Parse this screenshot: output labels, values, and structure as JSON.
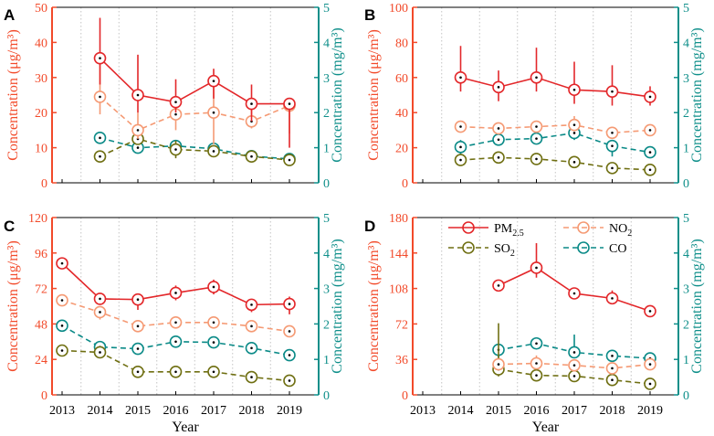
{
  "colors": {
    "pm25": "#e3272a",
    "no2": "#f59a74",
    "so2": "#6f6f12",
    "co": "#0a8a87",
    "left_axis": "#f24a2a",
    "right_axis": "#0f8f8a",
    "grid": "#c4c4c4"
  },
  "x_axis": {
    "xlabel": "Year"
  },
  "legend": {
    "pm25": "PM",
    "pm25_sub": "2.5",
    "no2": "NO",
    "no2_sub": "2",
    "so2": "SO",
    "so2_sub": "2",
    "co": "CO"
  },
  "chart_data": [
    {
      "type": "line",
      "panel_label": "A",
      "categories": [
        "2013",
        "2014",
        "2015",
        "2016",
        "2017",
        "2018",
        "2019"
      ],
      "ylabel_left": "Concentration (μg/m³)",
      "ylabel_right": "Concentration (mg/m³)",
      "ylim_left": [
        0,
        50
      ],
      "yticks_left": [
        0,
        10,
        20,
        30,
        40,
        50
      ],
      "ylim_right": [
        0,
        5
      ],
      "yticks_right": [
        0,
        1,
        2,
        3,
        4,
        5
      ],
      "series": [
        {
          "name": "PM2.5",
          "key": "pm25",
          "axis": "left",
          "values": [
            null,
            35.5,
            25,
            23,
            29,
            22.5,
            22.5
          ],
          "err_low": [
            null,
            7.5,
            5,
            3,
            5,
            5,
            12.5
          ],
          "err_high": [
            null,
            11.5,
            11.5,
            6.5,
            3.5,
            5.5,
            0.5
          ]
        },
        {
          "name": "NO2",
          "key": "no2",
          "axis": "left",
          "values": [
            null,
            24.5,
            15,
            19.5,
            20,
            17.5,
            22
          ],
          "err_low": [
            null,
            5,
            2.5,
            4.5,
            9,
            2,
            8
          ],
          "err_high": [
            null,
            10,
            5,
            2.5,
            7.5,
            3.5,
            2
          ]
        },
        {
          "name": "SO2",
          "key": "so2",
          "axis": "right",
          "values": [
            null,
            0.75,
            1.25,
            0.95,
            0.9,
            0.75,
            0.65
          ],
          "err_low": [
            null,
            0.15,
            0.15,
            0.25,
            0.1,
            0.05,
            0.05
          ],
          "err_high": [
            null,
            0.1,
            0.3,
            0.25,
            0.15,
            0.1,
            0.05
          ]
        },
        {
          "name": "CO",
          "key": "co",
          "axis": "right",
          "values": [
            null,
            1.28,
            1.0,
            1.05,
            0.97,
            0.76,
            0.68
          ],
          "err_low": [
            null,
            0,
            0,
            0,
            0,
            0,
            0
          ],
          "err_high": [
            null,
            0,
            0,
            0,
            0,
            0,
            0
          ]
        }
      ]
    },
    {
      "type": "line",
      "panel_label": "B",
      "categories": [
        "2013",
        "2014",
        "2015",
        "2016",
        "2017",
        "2018",
        "2019"
      ],
      "ylabel_left": "Concentration (μg/m³)",
      "ylabel_right": "Concentration (mg/m³)",
      "ylim_left": [
        0,
        100
      ],
      "yticks_left": [
        0,
        20,
        40,
        60,
        80,
        100
      ],
      "ylim_right": [
        0,
        5
      ],
      "yticks_right": [
        0,
        1,
        2,
        3,
        4,
        5
      ],
      "series": [
        {
          "name": "PM2.5",
          "key": "pm25",
          "axis": "left",
          "values": [
            null,
            60,
            54.5,
            60,
            53,
            52,
            49
          ],
          "err_low": [
            null,
            8,
            8,
            8,
            8,
            8,
            5
          ],
          "err_high": [
            null,
            18,
            9.5,
            17,
            16,
            15,
            6
          ]
        },
        {
          "name": "NO2",
          "key": "no2",
          "axis": "left",
          "values": [
            null,
            32,
            31,
            32,
            33,
            28.5,
            30
          ],
          "err_low": [
            null,
            2,
            2,
            2,
            2,
            2,
            2
          ],
          "err_high": [
            null,
            2,
            2,
            2,
            5,
            3,
            2
          ]
        },
        {
          "name": "SO2",
          "key": "so2",
          "axis": "right",
          "values": [
            null,
            0.65,
            0.72,
            0.68,
            0.59,
            0.42,
            0.37
          ],
          "err_low": [
            null,
            0.15,
            0.15,
            0.15,
            0.12,
            0.05,
            0.05
          ],
          "err_high": [
            null,
            0.15,
            0.15,
            0.1,
            0.12,
            0.1,
            0.05
          ]
        },
        {
          "name": "CO",
          "key": "co",
          "axis": "right",
          "values": [
            null,
            1.02,
            1.23,
            1.26,
            1.42,
            1.05,
            0.87
          ],
          "err_low": [
            null,
            0.2,
            0.15,
            0.15,
            0.2,
            0.3,
            0.15
          ],
          "err_high": [
            null,
            0.2,
            0.15,
            0.1,
            0.15,
            0.15,
            0.1
          ]
        }
      ]
    },
    {
      "type": "line",
      "panel_label": "C",
      "categories": [
        "2013",
        "2014",
        "2015",
        "2016",
        "2017",
        "2018",
        "2019"
      ],
      "ylabel_left": "Concentration (μg/m³)",
      "ylabel_right": "Concentration (mg/m³)",
      "ylim_left": [
        0,
        120
      ],
      "yticks_left": [
        0,
        24,
        48,
        72,
        96,
        120
      ],
      "ylim_right": [
        0,
        5
      ],
      "yticks_right": [
        0,
        1,
        2,
        3,
        4,
        5
      ],
      "series": [
        {
          "name": "PM2.5",
          "key": "pm25",
          "axis": "left",
          "values": [
            89,
            65,
            64.5,
            69,
            73,
            61,
            61.5
          ],
          "err_low": [
            0,
            4,
            7,
            5,
            5,
            5,
            7
          ],
          "err_high": [
            0,
            0,
            3,
            5,
            5,
            4,
            5
          ]
        },
        {
          "name": "NO2",
          "key": "no2",
          "axis": "left",
          "values": [
            64,
            56,
            46.5,
            49,
            49,
            46.5,
            43
          ],
          "err_low": [
            0,
            5,
            2,
            2,
            2,
            4,
            4
          ],
          "err_high": [
            0,
            0,
            2,
            2,
            2,
            2,
            4
          ]
        },
        {
          "name": "SO2",
          "key": "so2",
          "axis": "right",
          "values": [
            1.25,
            1.2,
            0.65,
            0.65,
            0.65,
            0.5,
            0.4
          ],
          "err_low": [
            0,
            0,
            0,
            0,
            0,
            0,
            0
          ],
          "err_high": [
            0,
            0,
            0,
            0,
            0,
            0,
            0
          ]
        },
        {
          "name": "CO",
          "key": "co",
          "axis": "right",
          "values": [
            1.95,
            1.35,
            1.3,
            1.5,
            1.48,
            1.32,
            1.12
          ],
          "err_low": [
            0,
            0,
            0,
            0.1,
            0.1,
            0.1,
            0
          ],
          "err_high": [
            0,
            0,
            0,
            0.05,
            0.05,
            0.05,
            0
          ]
        }
      ]
    },
    {
      "type": "line",
      "panel_label": "D",
      "categories": [
        "2013",
        "2014",
        "2015",
        "2016",
        "2017",
        "2018",
        "2019"
      ],
      "ylabel_left": "Concentration (μg/m³)",
      "ylabel_right": "Concentration (mg/m³)",
      "ylim_left": [
        0,
        180
      ],
      "yticks_left": [
        0,
        36,
        72,
        108,
        144,
        180
      ],
      "ylim_right": [
        0,
        5
      ],
      "yticks_right": [
        0,
        1,
        2,
        3,
        4,
        5
      ],
      "series": [
        {
          "name": "PM2.5",
          "key": "pm25",
          "axis": "left",
          "values": [
            null,
            null,
            111,
            129,
            103,
            98,
            85
          ],
          "err_low": [
            null,
            null,
            0,
            10,
            5,
            5,
            0
          ],
          "err_high": [
            null,
            null,
            0,
            25,
            5,
            8,
            0
          ]
        },
        {
          "name": "NO2",
          "key": "no2",
          "axis": "left",
          "values": [
            null,
            null,
            31,
            32,
            30,
            27,
            31
          ],
          "err_low": [
            null,
            null,
            0,
            0,
            0,
            0,
            0
          ],
          "err_high": [
            null,
            null,
            0,
            8,
            3,
            0,
            0
          ]
        },
        {
          "name": "SO2",
          "key": "so2",
          "axis": "right",
          "values": [
            null,
            null,
            0.72,
            0.55,
            0.53,
            0.42,
            0.31
          ],
          "err_low": [
            null,
            null,
            0.2,
            0.1,
            0.1,
            0.05,
            0.05
          ],
          "err_high": [
            null,
            null,
            1.3,
            0.25,
            0.15,
            0.1,
            0.05
          ]
        },
        {
          "name": "CO",
          "key": "co",
          "axis": "right",
          "values": [
            null,
            null,
            1.27,
            1.45,
            1.2,
            1.1,
            1.03
          ],
          "err_low": [
            null,
            null,
            0.45,
            0.1,
            0.15,
            0.05,
            0.05
          ],
          "err_high": [
            null,
            null,
            0.15,
            0.05,
            0.5,
            0.05,
            0.05
          ]
        }
      ]
    }
  ]
}
